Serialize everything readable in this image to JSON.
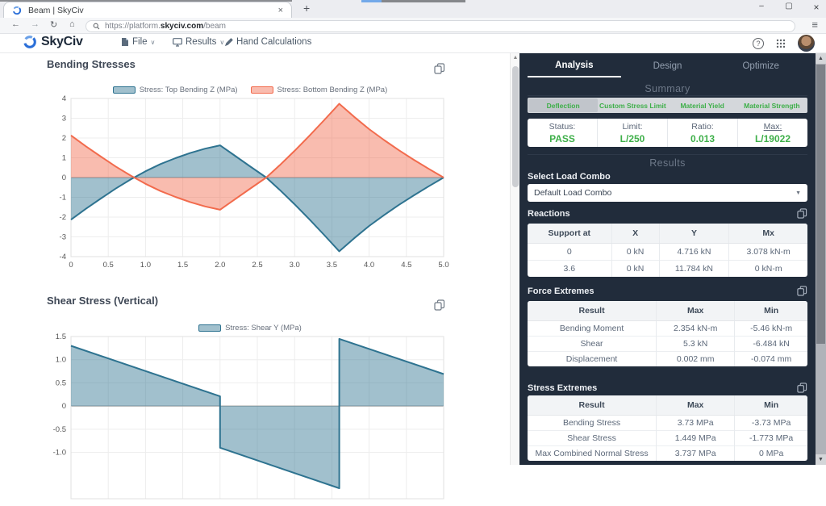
{
  "browser": {
    "tab_title": "Beam | SkyCiv",
    "new_tab": "+",
    "close_tab": "×",
    "window": {
      "minimize": "–",
      "maximize": "▢",
      "close": "×"
    },
    "nav": {
      "back": "←",
      "forward": "→",
      "refresh": "↻",
      "home": "⌂",
      "menu": "≡"
    },
    "url": {
      "prefix": "https://platform.",
      "domain": "skyciv.com",
      "path": "/beam"
    }
  },
  "toolbar": {
    "brand": "SkyCiv",
    "menus": [
      {
        "label": "File",
        "caret": "∨"
      },
      {
        "label": "Results",
        "caret": "∨"
      },
      {
        "label": "Hand Calculations",
        "caret": ""
      }
    ],
    "help": "?"
  },
  "chart_data": [
    {
      "type": "area",
      "title": "Bending Stresses",
      "xlim": [
        0,
        5
      ],
      "ylim": [
        -4,
        4
      ],
      "x_grid": [
        0,
        0.5,
        1,
        1.5,
        2,
        2.5,
        3,
        3.5,
        4,
        4.5,
        5
      ],
      "x_tick_labels": [
        "0",
        "0.5",
        "1.0",
        "1.5",
        "2.0",
        "2.5",
        "3.0",
        "3.5",
        "4.0",
        "4.5",
        "5.0"
      ],
      "y_grid": [
        4,
        3,
        2,
        1,
        0,
        -1,
        -2,
        -3,
        -4
      ],
      "y_tick_labels": [
        "4",
        "3",
        "2",
        "1",
        "0",
        "-1",
        "-2",
        "-3",
        "-4"
      ],
      "series": [
        {
          "name": "Stress: Top Bending Z (MPa)",
          "color": "#2e7390",
          "points": [
            [
              0,
              -2.13
            ],
            [
              0.2,
              -1.58
            ],
            [
              0.4,
              -1.06
            ],
            [
              0.6,
              -0.56
            ],
            [
              0.8,
              -0.1
            ],
            [
              1.0,
              0.32
            ],
            [
              1.2,
              0.68
            ],
            [
              1.4,
              0.98
            ],
            [
              1.6,
              1.24
            ],
            [
              1.8,
              1.46
            ],
            [
              2.0,
              1.63
            ],
            [
              2.2,
              1.1
            ],
            [
              2.4,
              0.57
            ],
            [
              2.62,
              0
            ],
            [
              2.8,
              -0.62
            ],
            [
              3.0,
              -1.35
            ],
            [
              3.2,
              -2.12
            ],
            [
              3.4,
              -2.92
            ],
            [
              3.6,
              -3.73
            ],
            [
              3.8,
              -3.07
            ],
            [
              4.0,
              -2.45
            ],
            [
              4.2,
              -1.9
            ],
            [
              4.4,
              -1.38
            ],
            [
              4.6,
              -0.9
            ],
            [
              4.8,
              -0.44
            ],
            [
              5.0,
              0
            ]
          ]
        },
        {
          "name": "Stress: Bottom Bending Z (MPa)",
          "color": "#f26b4d",
          "points": [
            [
              0,
              2.13
            ],
            [
              0.2,
              1.58
            ],
            [
              0.4,
              1.06
            ],
            [
              0.6,
              0.56
            ],
            [
              0.8,
              0.1
            ],
            [
              1.0,
              -0.32
            ],
            [
              1.2,
              -0.68
            ],
            [
              1.4,
              -0.98
            ],
            [
              1.6,
              -1.24
            ],
            [
              1.8,
              -1.46
            ],
            [
              2.0,
              -1.63
            ],
            [
              2.2,
              -1.1
            ],
            [
              2.4,
              -0.57
            ],
            [
              2.62,
              0
            ],
            [
              2.8,
              0.62
            ],
            [
              3.0,
              1.35
            ],
            [
              3.2,
              2.12
            ],
            [
              3.4,
              2.92
            ],
            [
              3.6,
              3.73
            ],
            [
              3.8,
              3.07
            ],
            [
              4.0,
              2.45
            ],
            [
              4.2,
              1.9
            ],
            [
              4.4,
              1.38
            ],
            [
              4.6,
              0.9
            ],
            [
              4.8,
              0.44
            ],
            [
              5.0,
              0
            ]
          ]
        }
      ]
    },
    {
      "type": "area",
      "title": "Shear Stress (Vertical)",
      "xlim": [
        0,
        5
      ],
      "ylim": [
        -2,
        1.5
      ],
      "x_grid": [
        0,
        0.5,
        1,
        1.5,
        2,
        2.5,
        3,
        3.5,
        4,
        4.5,
        5
      ],
      "x_tick_labels": [
        "",
        "",
        "",
        "",
        "",
        "",
        "",
        "",
        "",
        "",
        ""
      ],
      "y_grid": [
        1.5,
        1,
        0.5,
        0,
        -0.5,
        -1
      ],
      "y_tick_labels": [
        "1.5",
        "1.0",
        "0.5",
        "0",
        "-0.5",
        "-1.0"
      ],
      "series": [
        {
          "name": "Stress: Shear Y (MPa)",
          "color": "#2e7390",
          "points": [
            [
              0,
              1.3
            ],
            [
              2.0,
              0.21
            ],
            [
              2.0,
              -0.9
            ],
            [
              3.6,
              -1.773
            ],
            [
              3.6,
              1.449
            ],
            [
              5.0,
              0.69
            ]
          ]
        }
      ]
    }
  ],
  "panel": {
    "tabs": [
      {
        "label": "Analysis",
        "active": true
      },
      {
        "label": "Design",
        "active": false
      },
      {
        "label": "Optimize",
        "active": false
      }
    ],
    "summary": {
      "heading": "Summary",
      "segments": [
        {
          "label": "Deflection",
          "active": true
        },
        {
          "label": "Custom Stress Limit",
          "active": false
        },
        {
          "label": "Material Yield",
          "active": false
        },
        {
          "label": "Material Strength",
          "active": false
        }
      ],
      "cards": [
        {
          "label": "Status:",
          "value": "PASS",
          "underline": false
        },
        {
          "label": "Limit:",
          "value": "L/250",
          "underline": false
        },
        {
          "label": "Ratio:",
          "value": "0.013",
          "underline": false
        },
        {
          "label": "Max:",
          "value": "L/19022",
          "underline": true
        }
      ]
    },
    "results": {
      "heading": "Results",
      "combo_label": "Select Load Combo",
      "combo_value": "Default Load Combo"
    },
    "reactions": {
      "title": "Reactions",
      "headers": [
        "Support at",
        "X",
        "Y",
        "Mx"
      ],
      "rows": [
        [
          "0",
          "0 kN",
          "4.716 kN",
          "3.078 kN-m"
        ],
        [
          "3.6",
          "0 kN",
          "11.784 kN",
          "0 kN-m"
        ]
      ]
    },
    "force_extremes": {
      "title": "Force Extremes",
      "headers": [
        "Result",
        "Max",
        "Min"
      ],
      "rows": [
        [
          "Bending Moment",
          "2.354 kN-m",
          "-5.46 kN-m"
        ],
        [
          "Shear",
          "5.3 kN",
          "-6.484 kN"
        ],
        [
          "Displacement",
          "0.002 mm",
          "-0.074 mm"
        ]
      ]
    },
    "stress_extremes": {
      "title": "Stress Extremes",
      "headers": [
        "Result",
        "Max",
        "Min"
      ],
      "rows": [
        [
          "Bending Stress",
          "3.73 MPa",
          "-3.73 MPa"
        ],
        [
          "Shear Stress",
          "1.449 MPa",
          "-1.773 MPa"
        ],
        [
          "Max Combined Normal Stress",
          "3.737 MPa",
          "0 MPa"
        ]
      ]
    }
  }
}
